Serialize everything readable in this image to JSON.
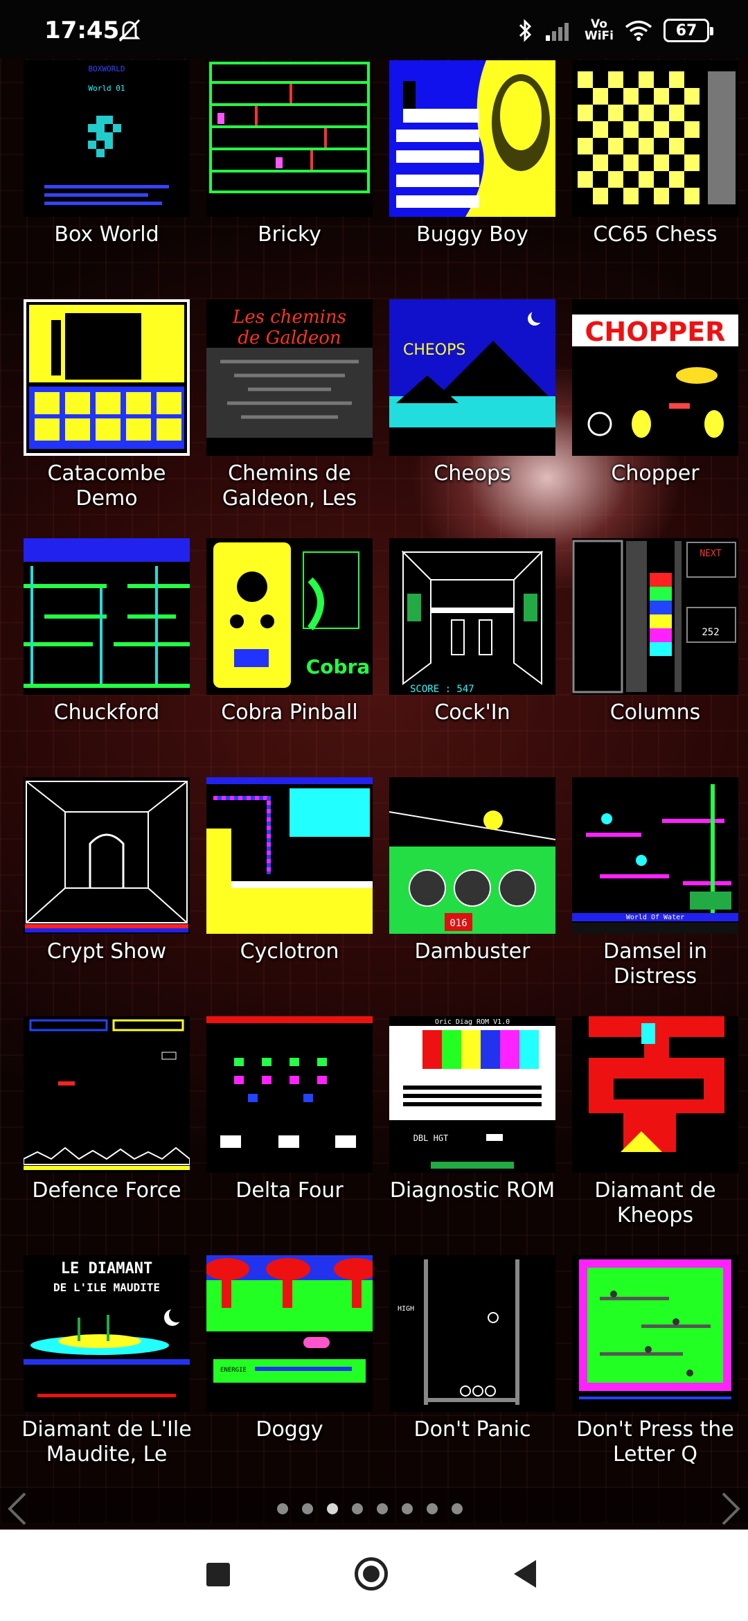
{
  "status_bar": {
    "time": "17:45",
    "vowifi_top": "Vo",
    "vowifi_bottom": "WiFi",
    "battery": "67"
  },
  "games": [
    {
      "label": "Box World",
      "icon": "box-world-screenshot"
    },
    {
      "label": "Bricky",
      "icon": "bricky-screenshot"
    },
    {
      "label": "Buggy Boy",
      "icon": "buggy-boy-screenshot"
    },
    {
      "label": "CC65 Chess",
      "icon": "cc65-chess-screenshot"
    },
    {
      "label": "Catacombe Demo",
      "icon": "catacombe-demo-screenshot"
    },
    {
      "label": "Chemins de Galdeon, Les",
      "icon": "chemins-de-galdeon-screenshot"
    },
    {
      "label": "Cheops",
      "icon": "cheops-screenshot"
    },
    {
      "label": "Chopper",
      "icon": "chopper-screenshot"
    },
    {
      "label": "Chuckford",
      "icon": "chuckford-screenshot"
    },
    {
      "label": "Cobra Pinball",
      "icon": "cobra-pinball-screenshot"
    },
    {
      "label": "Cock'In",
      "icon": "cockin-screenshot"
    },
    {
      "label": "Columns",
      "icon": "columns-screenshot"
    },
    {
      "label": "Crypt Show",
      "icon": "crypt-show-screenshot"
    },
    {
      "label": "Cyclotron",
      "icon": "cyclotron-screenshot"
    },
    {
      "label": "Dambuster",
      "icon": "dambuster-screenshot"
    },
    {
      "label": "Damsel in Distress",
      "icon": "damsel-in-distress-screenshot"
    },
    {
      "label": "Defence Force",
      "icon": "defence-force-screenshot"
    },
    {
      "label": "Delta Four",
      "icon": "delta-four-screenshot"
    },
    {
      "label": "Diagnostic ROM",
      "icon": "diagnostic-rom-screenshot"
    },
    {
      "label": "Diamant de Kheops",
      "icon": "diamant-de-kheops-screenshot"
    },
    {
      "label": "Diamant de L'Ile Maudite, Le",
      "icon": "diamant-ile-maudite-screenshot"
    },
    {
      "label": "Doggy",
      "icon": "doggy-screenshot"
    },
    {
      "label": "Don't Panic",
      "icon": "dont-panic-screenshot"
    },
    {
      "label": "Don't Press the Letter Q",
      "icon": "dont-press-letter-q-screenshot"
    }
  ],
  "thumb_text": {
    "box_world_title": "BOXWORLD",
    "box_world_level": "World 01",
    "cheops_title": "CHEOPS",
    "chopper_title": "CHOPPER",
    "chemins_line1": "Les chemins",
    "chemins_line2": "de Galdeon",
    "cobra_word": "Cobra",
    "cockin_score": "SCORE : 547",
    "columns_next": "NEXT",
    "columns_score": "252",
    "dambuster_counter": "016",
    "diag_header": "Oric Diag ROM V1.0",
    "diag_mode": "DBL HGT",
    "dont_panic_high": "HIGH",
    "damsel_footer": "World Of Water",
    "diamant_title1": "LE DIAMANT",
    "diamant_title2": "DE L'ILE MAUDITE",
    "doggy_energy": "ENERGIE"
  },
  "pager": {
    "pages": 8,
    "active_index": 2
  },
  "colors": {
    "accent_bg": "#2a0807",
    "pager_active": "#d8d8d8",
    "pager_inactive": "#8a8a8a"
  }
}
